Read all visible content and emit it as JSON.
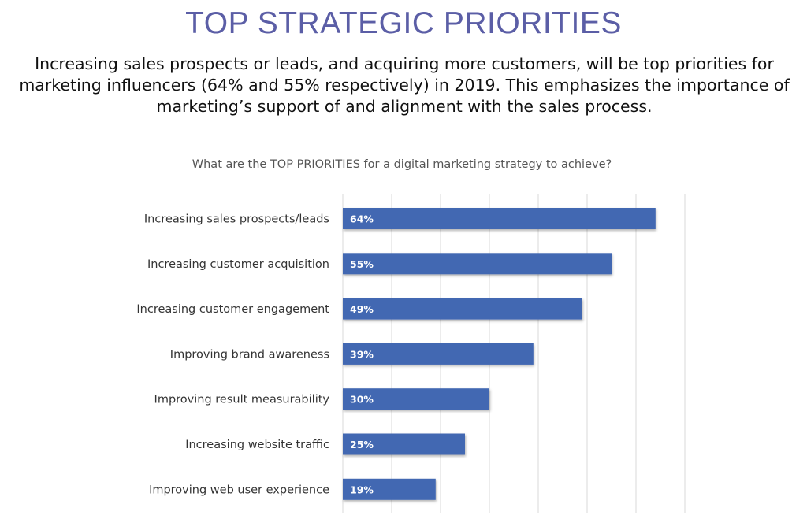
{
  "header": {
    "title": "TOP STRATEGIC PRIORITIES",
    "subtitle": "Increasing sales prospects or leads, and acquiring more customers, will be top priorities for marketing influencers (64% and 55% respectively) in 2019. This emphasizes the importance of marketing’s support of and alignment with the sales process."
  },
  "chart_data": {
    "type": "bar",
    "orientation": "horizontal",
    "title": "What are the TOP PRIORITIES for a digital marketing strategy to achieve?",
    "categories": [
      "Increasing sales prospects/leads",
      "Increasing customer acquisition",
      "Increasing customer engagement",
      "Improving brand awareness",
      "Improving result measurability",
      "Increasing website traffic",
      "Improving web user experience"
    ],
    "values": [
      64,
      55,
      49,
      39,
      30,
      25,
      19
    ],
    "data_labels": [
      "64%",
      "55%",
      "49%",
      "39%",
      "30%",
      "25%",
      "19%"
    ],
    "xlim": [
      0,
      70
    ],
    "grid": true,
    "grid_step": 10,
    "bar_color": "#4267b2",
    "title_color": "#5b5ea6"
  }
}
